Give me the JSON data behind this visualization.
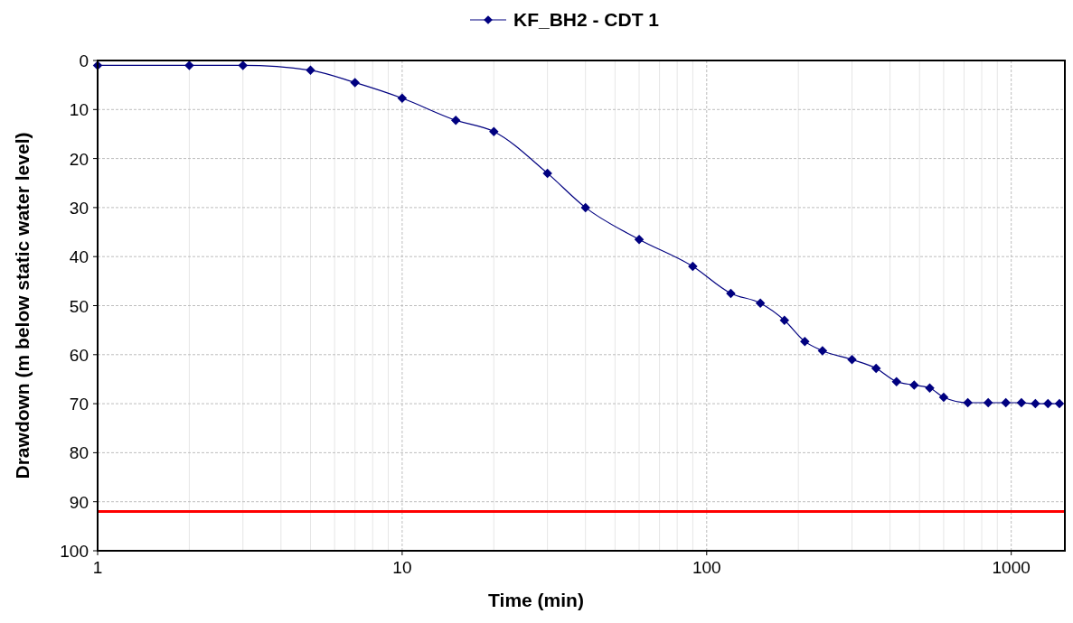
{
  "chart_data": {
    "type": "line",
    "xlabel": "Time (min)",
    "ylabel": "Drawdown (m below static water level)",
    "log": "x",
    "grid": true,
    "legend": "top",
    "marker": "diamond",
    "line_style": "solid",
    "x": [
      1,
      2,
      3,
      5,
      7,
      10,
      15,
      20,
      30,
      40,
      60,
      90,
      120,
      150,
      180,
      210,
      240,
      300,
      360,
      420,
      480,
      540,
      600,
      720,
      840,
      960,
      1080,
      1200,
      1320,
      1440
    ],
    "series": [
      {
        "name": "KF_BH2 - CDT 1",
        "color": "#000080",
        "values": [
          1,
          1,
          1,
          2,
          4.5,
          7.7,
          12.2,
          14.5,
          23,
          30,
          36.5,
          42,
          47.5,
          49.5,
          53,
          57.3,
          59.2,
          61,
          62.8,
          65.5,
          66.2,
          66.8,
          68.7,
          69.8,
          69.8,
          69.8,
          69.8,
          70,
          70,
          70
        ]
      }
    ],
    "xlim": [
      1,
      1500
    ],
    "xticks": [
      1,
      {
        "value": 2,
        "label": null
      },
      {
        "value": 3,
        "label": null
      },
      {
        "value": 4,
        "label": null
      },
      {
        "value": 5,
        "label": null
      },
      {
        "value": 6,
        "label": null
      },
      {
        "value": 7,
        "label": null
      },
      {
        "value": 8,
        "label": null
      },
      {
        "value": 9,
        "label": null
      },
      10,
      {
        "value": 20,
        "label": null
      },
      {
        "value": 30,
        "label": null
      },
      {
        "value": 40,
        "label": null
      },
      {
        "value": 50,
        "label": null
      },
      {
        "value": 60,
        "label": null
      },
      {
        "value": 70,
        "label": null
      },
      {
        "value": 80,
        "label": null
      },
      {
        "value": 90,
        "label": null
      },
      100,
      {
        "value": 200,
        "label": null
      },
      {
        "value": 300,
        "label": null
      },
      {
        "value": 400,
        "label": null
      },
      {
        "value": 500,
        "label": null
      },
      {
        "value": 600,
        "label": null
      },
      {
        "value": 700,
        "label": null
      },
      {
        "value": 800,
        "label": null
      },
      {
        "value": 900,
        "label": null
      },
      1000
    ],
    "ylim": [
      100,
      0
    ],
    "yticks": [
      0,
      10,
      20,
      30,
      40,
      50,
      60,
      70,
      80,
      90,
      100
    ],
    "ref_lines": [
      {
        "axis": "y",
        "value": 92,
        "color": "#ff0000",
        "line_style": "solid"
      }
    ]
  }
}
